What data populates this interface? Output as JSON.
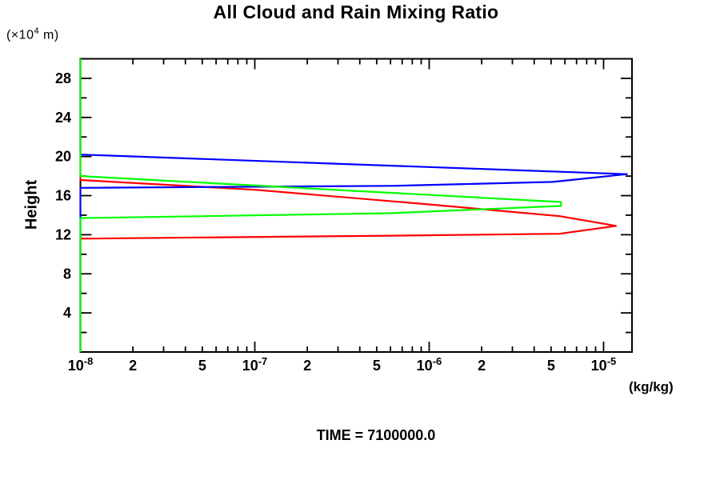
{
  "chart_data": {
    "type": "line",
    "title": "All Cloud and Rain Mixing Ratio",
    "ylabel": "Height",
    "y_units_prefix": "(×10",
    "y_units_exp": "4",
    "y_units_suffix": " m)",
    "xlabel": "(kg/kg)",
    "caption": "TIME = 7100000.0",
    "x_scale": "log",
    "x_log_min_exp": -8,
    "x_log_max_exp": -4.837,
    "x_decade_exponents": [
      -8,
      -7,
      -6,
      -5
    ],
    "x_labeled_minors": [
      2,
      5
    ],
    "ylim": [
      0,
      30
    ],
    "y_tick_step": 2,
    "y_label_step": 4,
    "y_major_tick_labels": [
      4,
      8,
      12,
      16,
      20,
      24,
      28
    ],
    "grid": false,
    "legend": "none",
    "frame_color": "#000000",
    "series": [
      {
        "name": "red-series",
        "color": "#ff0000",
        "points": [
          [
            1e-08,
            30
          ],
          [
            1e-08,
            17.6
          ],
          [
            1e-07,
            16.6
          ],
          [
            1e-06,
            15.1
          ],
          [
            5.6e-06,
            13.9
          ],
          [
            1.18e-05,
            12.9
          ],
          [
            5.6e-06,
            12.1
          ],
          [
            6.1e-07,
            11.9
          ],
          [
            1e-08,
            11.6
          ],
          [
            1e-08,
            0
          ]
        ]
      },
      {
        "name": "blue-series",
        "color": "#0000ff",
        "points": [
          [
            1e-08,
            30
          ],
          [
            1e-08,
            20.2
          ],
          [
            1.36e-05,
            18.2
          ],
          [
            5.1e-06,
            17.4
          ],
          [
            6.2e-07,
            17.0
          ],
          [
            1e-08,
            16.8
          ],
          [
            1e-08,
            0
          ]
        ]
      },
      {
        "name": "green-series",
        "color": "#00ff00",
        "points": [
          [
            1e-08,
            30
          ],
          [
            1e-08,
            18.0
          ],
          [
            5.7e-06,
            15.35
          ],
          [
            5.7e-06,
            14.95
          ],
          [
            6e-07,
            14.2
          ],
          [
            1e-08,
            13.7
          ],
          [
            1e-08,
            0
          ]
        ]
      }
    ]
  }
}
